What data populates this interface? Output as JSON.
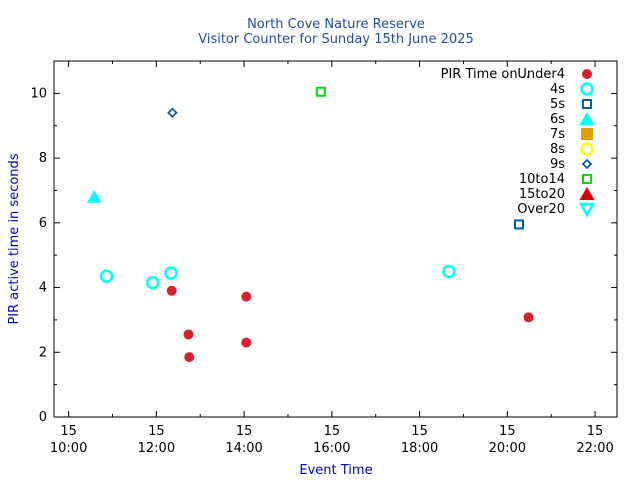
{
  "colors": {
    "title": "#1f4fa0",
    "axis_label": "#0000cc",
    "axis": "#000000",
    "Under4": "#d9202a",
    "4s": "#00ffff",
    "5s": "#0060ad",
    "6s": "#00ffff",
    "7s": "#e69f00",
    "8s": "#ffff00",
    "9s": "#0060ad",
    "10to14": "#00dd00",
    "15to20": "#dd0000",
    "Over20": "#00ffff"
  },
  "chart_data": {
    "type": "scatter",
    "title": "North Cove Nature Reserve",
    "subtitle": "Visitor Counter for Sunday 15th June 2025",
    "xlabel": "Event Time",
    "ylabel": "PIR active time in seconds",
    "xlim": [
      "2025-06-15 09:40",
      "2025-06-15 22:30"
    ],
    "ylim": [
      0,
      11
    ],
    "x_ticks": [
      {
        "time": "2025-06-15 10:00",
        "day": "15",
        "label": "10:00"
      },
      {
        "time": "2025-06-15 12:00",
        "day": "15",
        "label": "12:00"
      },
      {
        "time": "2025-06-15 14:00",
        "day": "15",
        "label": "14:00"
      },
      {
        "time": "2025-06-15 16:00",
        "day": "15",
        "label": "16:00"
      },
      {
        "time": "2025-06-15 18:00",
        "day": "15",
        "label": "18:00"
      },
      {
        "time": "2025-06-15 20:00",
        "day": "15",
        "label": "20:00"
      },
      {
        "time": "2025-06-15 22:00",
        "day": "15",
        "label": "22:00"
      }
    ],
    "x_minor_ticks": [
      "2025-06-15 11:00",
      "2025-06-15 13:00",
      "2025-06-15 15:00",
      "2025-06-15 17:00",
      "2025-06-15 19:00",
      "2025-06-15 21:00"
    ],
    "y_ticks": [
      0,
      2,
      4,
      6,
      8,
      10
    ],
    "y_minor_ticks": [
      1,
      3,
      5,
      7,
      9
    ],
    "grid": false,
    "legend_title": "PIR Time on ..",
    "legend_position": "top-right",
    "series": [
      {
        "name": "Under4",
        "marker": "circle-filled",
        "points": [
          {
            "x": "2025-06-15 12:21",
            "y": 3.9
          },
          {
            "x": "2025-06-15 12:44",
            "y": 2.55
          },
          {
            "x": "2025-06-15 12:45",
            "y": 1.85
          },
          {
            "x": "2025-06-15 14:03",
            "y": 3.72
          },
          {
            "x": "2025-06-15 14:03",
            "y": 2.3
          },
          {
            "x": "2025-06-15 20:29",
            "y": 3.08
          }
        ]
      },
      {
        "name": "4s",
        "marker": "circle-open",
        "points": [
          {
            "x": "2025-06-15 10:52",
            "y": 4.35
          },
          {
            "x": "2025-06-15 11:55",
            "y": 4.15
          },
          {
            "x": "2025-06-15 12:20",
            "y": 4.45
          },
          {
            "x": "2025-06-15 18:40",
            "y": 4.5
          }
        ]
      },
      {
        "name": "5s",
        "marker": "square-open",
        "points": [
          {
            "x": "2025-06-15 20:16",
            "y": 5.95
          }
        ]
      },
      {
        "name": "6s",
        "marker": "triangle-filled",
        "points": [
          {
            "x": "2025-06-15 10:35",
            "y": 6.8
          }
        ]
      },
      {
        "name": "7s",
        "marker": "square-filled",
        "points": []
      },
      {
        "name": "8s",
        "marker": "circle-open",
        "points": []
      },
      {
        "name": "9s",
        "marker": "diamond-open",
        "points": [
          {
            "x": "2025-06-15 12:22",
            "y": 9.4
          }
        ]
      },
      {
        "name": "10to14",
        "marker": "square-open",
        "points": [
          {
            "x": "2025-06-15 15:45",
            "y": 10.05
          }
        ]
      },
      {
        "name": "15to20",
        "marker": "triangle-filled",
        "points": []
      },
      {
        "name": "Over20",
        "marker": "triangle-down-open",
        "points": []
      }
    ]
  }
}
